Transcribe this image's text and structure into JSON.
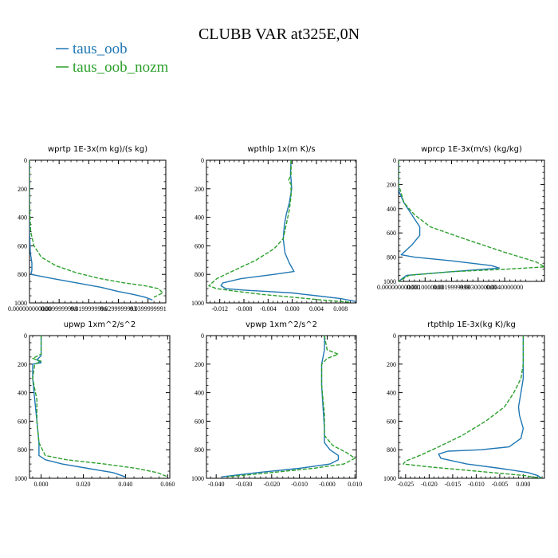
{
  "title": "CLUBB VAR at325E,0N",
  "legend": [
    {
      "name": "taus_oob",
      "color": "#1f77b4"
    },
    {
      "name": "taus_oob_nozm",
      "color": "#2ca02c"
    }
  ],
  "chart_data": [
    {
      "type": "line",
      "title": "wprtp  1E-3x(m kg)/(s kg)",
      "ylim": [
        1000,
        0
      ],
      "yticks": [
        0,
        200,
        400,
        600,
        800,
        1000
      ],
      "yticklabels": [
        "0",
        "200",
        "400",
        "600",
        "800",
        "1000"
      ],
      "xlim": [
        0,
        0.046
      ],
      "xticks": [
        0,
        0.01,
        0.02,
        0.03,
        0.04
      ],
      "xticklabels": [
        "0.000000000000",
        "0.0099999998",
        "0.0199999996",
        "0.0299999993",
        "0.0399999991"
      ],
      "series": [
        {
          "name": "taus_oob",
          "color": "#1f77b4",
          "dashed": false,
          "x": [
            0,
            0,
            0,
            0.0003,
            0.0008,
            0.0008,
            0.0005,
            0.008,
            0.016,
            0.024,
            0.03,
            0.035,
            0.039,
            0.0415
          ],
          "y": [
            0,
            300,
            500,
            650,
            720,
            770,
            800,
            830,
            860,
            890,
            920,
            940,
            960,
            980
          ]
        },
        {
          "name": "taus_oob_nozm",
          "color": "#2ca02c",
          "dashed": true,
          "x": [
            0,
            0,
            0.0004,
            0.0015,
            0.004,
            0.009,
            0.016,
            0.024,
            0.032,
            0.039,
            0.0435,
            0.045,
            0.042
          ],
          "y": [
            0,
            300,
            500,
            600,
            680,
            740,
            790,
            830,
            860,
            880,
            900,
            930,
            960
          ]
        }
      ]
    },
    {
      "type": "line",
      "title": "wpthlp  1x(m K)/s",
      "ylim": [
        1000,
        0
      ],
      "yticks": [
        0,
        200,
        400,
        600,
        800,
        1000
      ],
      "yticklabels": [
        "0",
        "200",
        "400",
        "600",
        "800",
        "1000"
      ],
      "xlim": [
        -0.0142,
        0.0106
      ],
      "xticks": [
        -0.012,
        -0.008,
        -0.004,
        0.0,
        0.004,
        0.008
      ],
      "xticklabels": [
        "-0.012",
        "-0.008",
        "-0.004",
        "0.000",
        "0.004",
        "0.008"
      ],
      "series": [
        {
          "name": "taus_oob",
          "color": "#1f77b4",
          "dashed": false,
          "x": [
            -0.0002,
            -0.0003,
            -0.0002,
            -0.0001,
            -0.0005,
            -0.001,
            -0.0013,
            -0.0015,
            -0.0012,
            -0.0005,
            0.0003,
            -0.003,
            -0.0085,
            -0.0115,
            -0.0118,
            -0.011,
            -0.008,
            -0.004,
            0.0,
            0.004,
            0.008,
            0.0105
          ],
          "y": [
            0,
            100,
            130,
            200,
            300,
            380,
            450,
            550,
            650,
            720,
            780,
            800,
            830,
            860,
            880,
            900,
            910,
            920,
            930,
            950,
            970,
            990
          ]
        },
        {
          "name": "taus_oob_nozm",
          "color": "#2ca02c",
          "dashed": true,
          "x": [
            -0.0002,
            -0.0002,
            -0.0006,
            -0.0002,
            -0.0002,
            -0.0005,
            -0.001,
            -0.0015,
            -0.003,
            -0.006,
            -0.0095,
            -0.0125,
            -0.0138,
            -0.0125,
            -0.009,
            -0.005,
            0.0,
            0.005,
            0.0095
          ],
          "y": [
            0,
            100,
            140,
            170,
            250,
            350,
            450,
            550,
            620,
            700,
            770,
            830,
            880,
            900,
            920,
            940,
            960,
            980,
            995
          ]
        }
      ]
    },
    {
      "type": "line",
      "title": "wprcp  1E-3x(m/s) (kg/kg)",
      "ylim": [
        1000,
        0
      ],
      "yticks": [
        0,
        200,
        400,
        600,
        800,
        1000
      ],
      "yticklabels": [
        "0",
        "200",
        "400",
        "600",
        "800",
        "1000"
      ],
      "xlim": [
        0,
        0.0055
      ],
      "xticks": [
        0,
        0.001,
        0.002,
        0.003,
        0.004
      ],
      "xticklabels": [
        "0.000000000000",
        "0.0010000000",
        "0.0019999999",
        "0.0030000000",
        "0.0040000000"
      ],
      "series": [
        {
          "name": "taus_oob",
          "color": "#1f77b4",
          "dashed": false,
          "x": [
            0,
            0,
            0.0002,
            0.0005,
            0.0008,
            0.0008,
            0.0005,
            0.0001,
            0.0006,
            0.002,
            0.0035,
            0.0038,
            0.002,
            0.0003,
            0
          ],
          "y": [
            0,
            250,
            350,
            450,
            550,
            620,
            700,
            780,
            800,
            830,
            870,
            890,
            920,
            950,
            1000
          ]
        },
        {
          "name": "taus_oob_nozm",
          "color": "#2ca02c",
          "dashed": true,
          "x": [
            0,
            0,
            0.0002,
            0.0006,
            0.0012,
            0.0025,
            0.004,
            0.0052,
            0.0055,
            0.004,
            0.002,
            0.0004,
            0
          ],
          "y": [
            0,
            200,
            350,
            450,
            550,
            650,
            760,
            840,
            880,
            900,
            920,
            950,
            1000
          ]
        }
      ]
    },
    {
      "type": "line",
      "title": "upwp   1xm^2/s^2",
      "ylim": [
        1000,
        0
      ],
      "yticks": [
        0,
        200,
        400,
        600,
        800,
        1000
      ],
      "yticklabels": [
        "0",
        "200",
        "400",
        "600",
        "800",
        "1000"
      ],
      "xlim": [
        -0.0055,
        0.061
      ],
      "xticks": [
        0.0,
        0.02,
        0.04,
        0.06
      ],
      "xticklabels": [
        "0.000",
        "0.020",
        "0.040",
        "0.060"
      ],
      "series": [
        {
          "name": "taus_oob",
          "color": "#1f77b4",
          "dashed": false,
          "x": [
            0,
            0,
            -0.002,
            0,
            -0.004,
            -0.004,
            -0.003,
            -0.002,
            -0.001,
            -0.001,
            0.002,
            0.01,
            0.022,
            0.034,
            0.04
          ],
          "y": [
            0,
            140,
            170,
            190,
            200,
            300,
            450,
            600,
            750,
            840,
            870,
            900,
            930,
            960,
            990
          ]
        },
        {
          "name": "taus_oob_nozm",
          "color": "#2ca02c",
          "dashed": true,
          "x": [
            0,
            0,
            -0.004,
            0,
            -0.003,
            -0.004,
            -0.002,
            -0.002,
            -0.001,
            0.002,
            0.012,
            0.03,
            0.045,
            0.055,
            0.06
          ],
          "y": [
            0,
            130,
            160,
            180,
            200,
            300,
            450,
            600,
            750,
            840,
            870,
            900,
            930,
            960,
            990
          ]
        }
      ]
    },
    {
      "type": "line",
      "title": "vpwp   1xm^2/s^2",
      "ylim": [
        1000,
        0
      ],
      "yticks": [
        0,
        200,
        400,
        600,
        800,
        1000
      ],
      "yticklabels": [
        "0",
        "200",
        "400",
        "600",
        "800",
        "1000"
      ],
      "xlim": [
        -0.0435,
        0.0105
      ],
      "xticks": [
        -0.04,
        -0.03,
        -0.02,
        -0.01,
        0.0,
        0.01
      ],
      "xticklabels": [
        "-0.040",
        "-0.030",
        "-0.020",
        "-0.010",
        "-0.000",
        "0.010"
      ],
      "series": [
        {
          "name": "taus_oob",
          "color": "#1f77b4",
          "dashed": false,
          "x": [
            -0.001,
            -0.001,
            -0.002,
            -0.002,
            -0.0015,
            -0.001,
            -0.001,
            0.001,
            0.004,
            0.004,
            0.001,
            -0.01,
            -0.025,
            -0.038
          ],
          "y": [
            0,
            100,
            200,
            350,
            500,
            650,
            750,
            800,
            840,
            870,
            900,
            930,
            960,
            990
          ]
        },
        {
          "name": "taus_oob_nozm",
          "color": "#2ca02c",
          "dashed": true,
          "x": [
            -0.001,
            0.0,
            0.004,
            0.0,
            -0.002,
            -0.002,
            -0.001,
            -0.001,
            0.002,
            0.007,
            0.01,
            0.006,
            -0.005,
            -0.02,
            -0.036
          ],
          "y": [
            0,
            100,
            130,
            160,
            200,
            350,
            550,
            700,
            770,
            820,
            860,
            900,
            930,
            960,
            990
          ]
        }
      ]
    },
    {
      "type": "line",
      "title": "rtpthlp   1E-3x(kg K)/kg",
      "ylim": [
        1000,
        0
      ],
      "yticks": [
        0,
        200,
        400,
        600,
        800,
        1000
      ],
      "yticklabels": [
        "0",
        "200",
        "400",
        "600",
        "800",
        "1000"
      ],
      "xlim": [
        -0.0265,
        0.0045
      ],
      "xticks": [
        -0.025,
        -0.02,
        -0.015,
        -0.01,
        -0.005,
        0.0
      ],
      "xticklabels": [
        "-0.025",
        "-0.020",
        "-0.015",
        "-0.010",
        "-0.005",
        "0.000"
      ],
      "series": [
        {
          "name": "taus_oob",
          "color": "#1f77b4",
          "dashed": false,
          "x": [
            0,
            0,
            0,
            -0.0005,
            -0.001,
            -0.0008,
            0,
            -0.0005,
            -0.003,
            -0.009,
            -0.016,
            -0.018,
            -0.0175,
            -0.012,
            -0.005,
            0.001,
            0.003,
            0.004
          ],
          "y": [
            0,
            200,
            300,
            400,
            500,
            560,
            650,
            720,
            780,
            800,
            810,
            830,
            860,
            900,
            930,
            960,
            980,
            1000
          ]
        },
        {
          "name": "taus_oob_nozm",
          "color": "#2ca02c",
          "dashed": true,
          "x": [
            0,
            0,
            -0.0005,
            -0.002,
            -0.004,
            -0.008,
            -0.013,
            -0.018,
            -0.022,
            -0.025,
            -0.0255,
            -0.02,
            -0.01,
            0.0,
            0.004
          ],
          "y": [
            0,
            200,
            300,
            400,
            500,
            600,
            700,
            780,
            840,
            880,
            900,
            920,
            950,
            980,
            1000
          ]
        }
      ]
    }
  ]
}
